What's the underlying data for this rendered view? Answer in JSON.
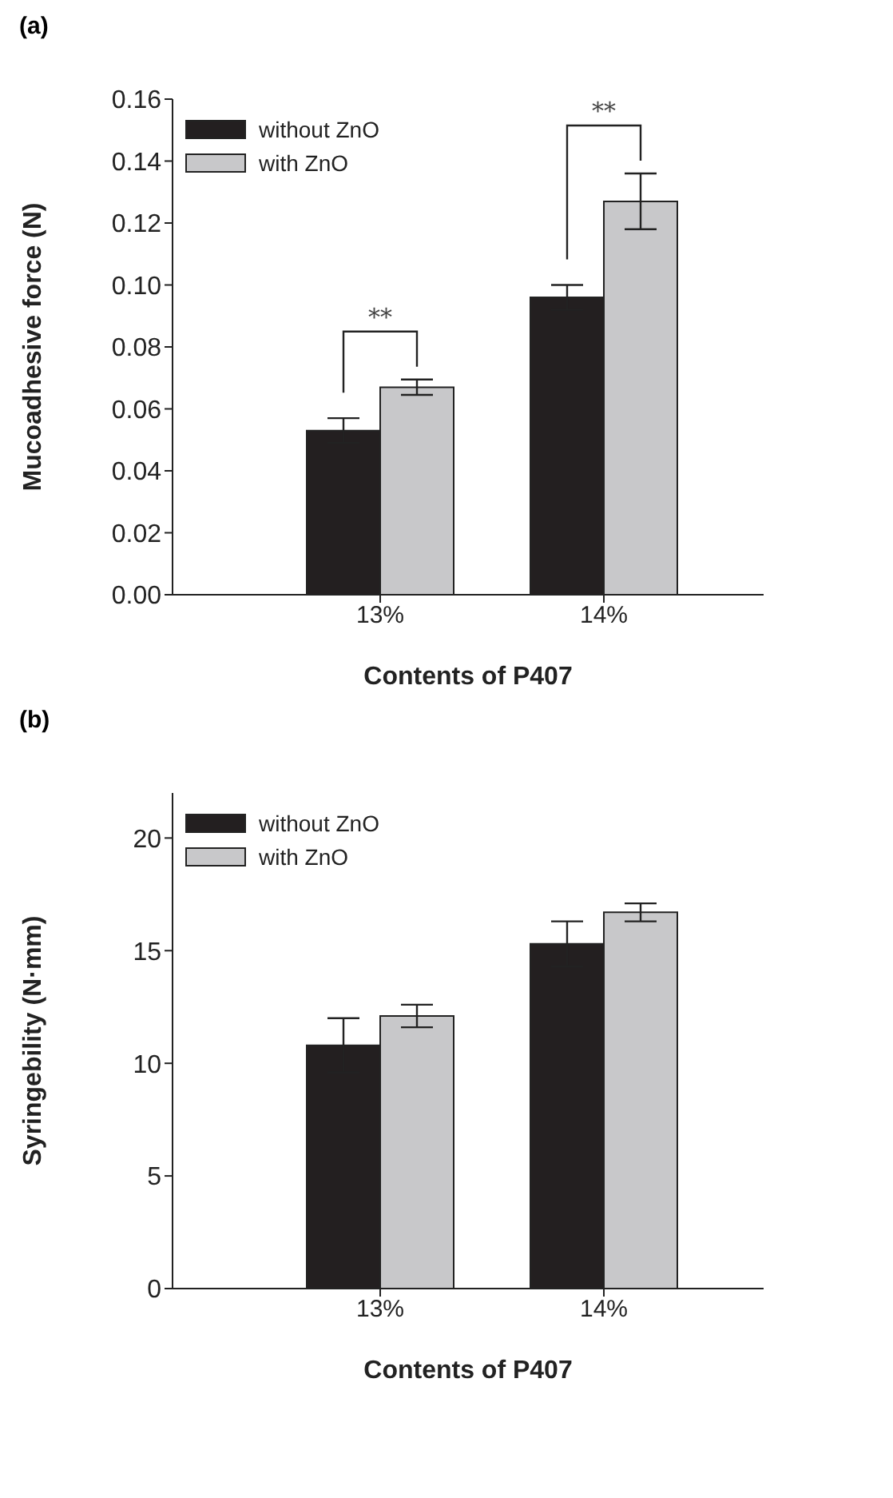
{
  "chart_data": [
    {
      "type": "bar",
      "title": "(a)",
      "xlabel": "Contents of P407",
      "ylabel": "Mucoadhesive force (N)",
      "categories": [
        "13%",
        "14%"
      ],
      "series": [
        {
          "name": "without ZnO",
          "color": "#231f20",
          "values": [
            0.053,
            0.096
          ],
          "errors": [
            0.004,
            0.004
          ]
        },
        {
          "name": "with ZnO",
          "color": "#c8c8ca",
          "values": [
            0.067,
            0.127
          ],
          "errors": [
            0.0025,
            0.009
          ]
        }
      ],
      "ylim": [
        0,
        0.16
      ],
      "yticks": [
        {
          "value": 0,
          "label": "0.00"
        },
        {
          "value": 0.02,
          "label": "0.02"
        },
        {
          "value": 0.04,
          "label": "0.04"
        },
        {
          "value": 0.06,
          "label": "0.06"
        },
        {
          "value": 0.08,
          "label": "0.08"
        },
        {
          "value": 0.1,
          "label": "0.10"
        },
        {
          "value": 0.12,
          "label": "0.12"
        },
        {
          "value": 0.14,
          "label": "0.14"
        },
        {
          "value": 0.16,
          "label": "0.16"
        }
      ],
      "legend": "top left",
      "annotations": [
        "**",
        "**"
      ]
    },
    {
      "type": "bar",
      "title": "(b)",
      "xlabel": "Contents of P407",
      "ylabel": "Syringebility  (N·mm)",
      "categories": [
        "13%",
        "14%"
      ],
      "series": [
        {
          "name": "without ZnO",
          "color": "#231f20",
          "values": [
            10.8,
            15.3
          ],
          "errors": [
            1.2,
            1.0
          ]
        },
        {
          "name": "with ZnO",
          "color": "#c8c8ca",
          "values": [
            12.1,
            16.7
          ],
          "errors": [
            0.5,
            0.4
          ]
        }
      ],
      "ylim": [
        0,
        22
      ],
      "yticks": [
        0,
        5,
        10,
        15,
        20
      ],
      "legend": "top left"
    }
  ]
}
